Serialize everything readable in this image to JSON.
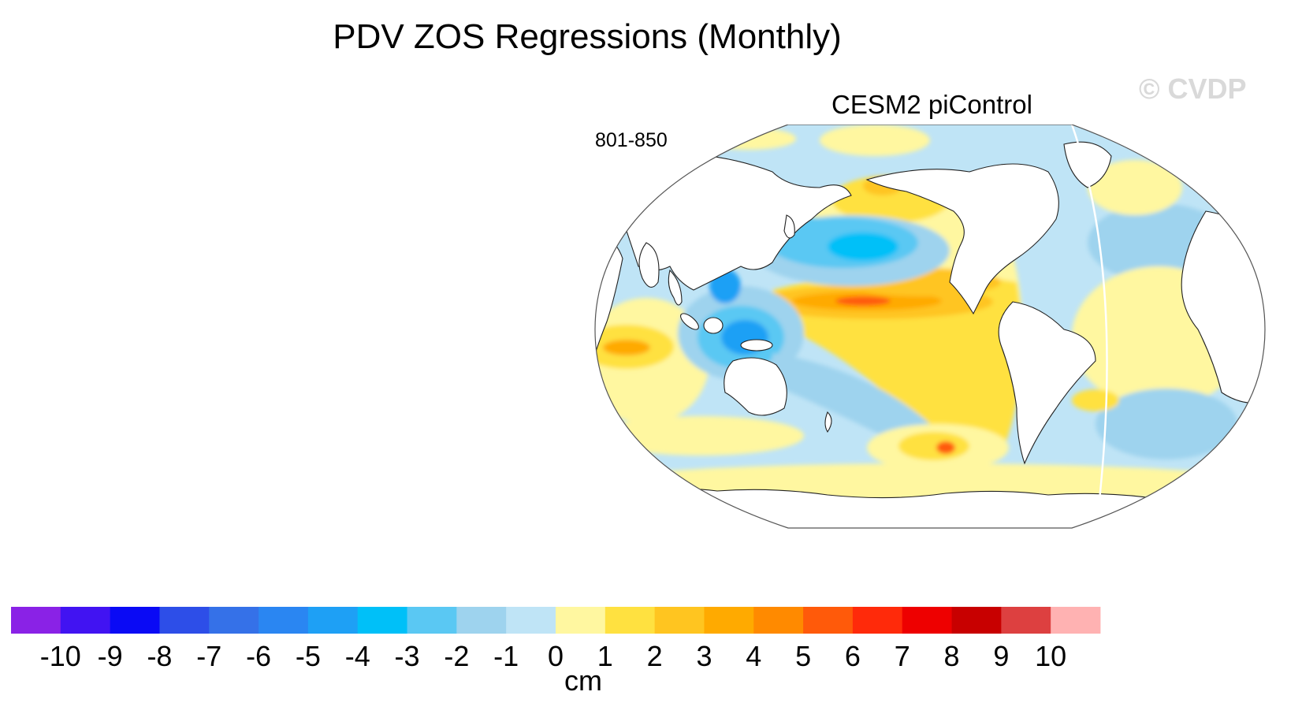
{
  "title": "PDV ZOS Regressions (Monthly)",
  "watermark": "© CVDP",
  "map": {
    "subtitle": "CESM2 piControl",
    "period": "801-850",
    "projection": "robinson",
    "field": "sea surface height regression onto PDV index",
    "notable_features": [
      {
        "label": "central-equatorial-pacific-max",
        "value_cm": 5
      },
      {
        "label": "north-pacific-min",
        "value_cm": -4
      },
      {
        "label": "maritime-continent-min",
        "value_cm": -4
      },
      {
        "label": "southern-ocean-max",
        "value_cm": 6
      }
    ]
  },
  "colorbar": {
    "units": "cm",
    "labels": [
      "-10",
      "-9",
      "-8",
      "-7",
      "-6",
      "-5",
      "-4",
      "-3",
      "-2",
      "-1",
      "0",
      "1",
      "2",
      "3",
      "4",
      "5",
      "6",
      "7",
      "8",
      "9",
      "10"
    ],
    "colors": [
      "#8a22e6",
      "#4113f2",
      "#0a0af5",
      "#2d4ee8",
      "#3571e8",
      "#2a86f2",
      "#1ea0f5",
      "#00c0f8",
      "#5ac8f3",
      "#9ed3ee",
      "#bfe4f6",
      "#fff7a0",
      "#ffe140",
      "#ffc520",
      "#ffaa00",
      "#ff8a00",
      "#ff5a0a",
      "#ff2a0a",
      "#ee0000",
      "#c80000",
      "#dd4040",
      "#ffb2b2"
    ]
  },
  "chart_data": {
    "type": "heatmap",
    "title": "PDV ZOS Regressions (Monthly)",
    "subtitle": "CESM2 piControl",
    "period": "801-850",
    "units": "cm",
    "levels": [
      -10,
      -9,
      -8,
      -7,
      -6,
      -5,
      -4,
      -3,
      -2,
      -1,
      0,
      1,
      2,
      3,
      4,
      5,
      6,
      7,
      8,
      9,
      10
    ],
    "value_range": [
      -10,
      10
    ]
  }
}
